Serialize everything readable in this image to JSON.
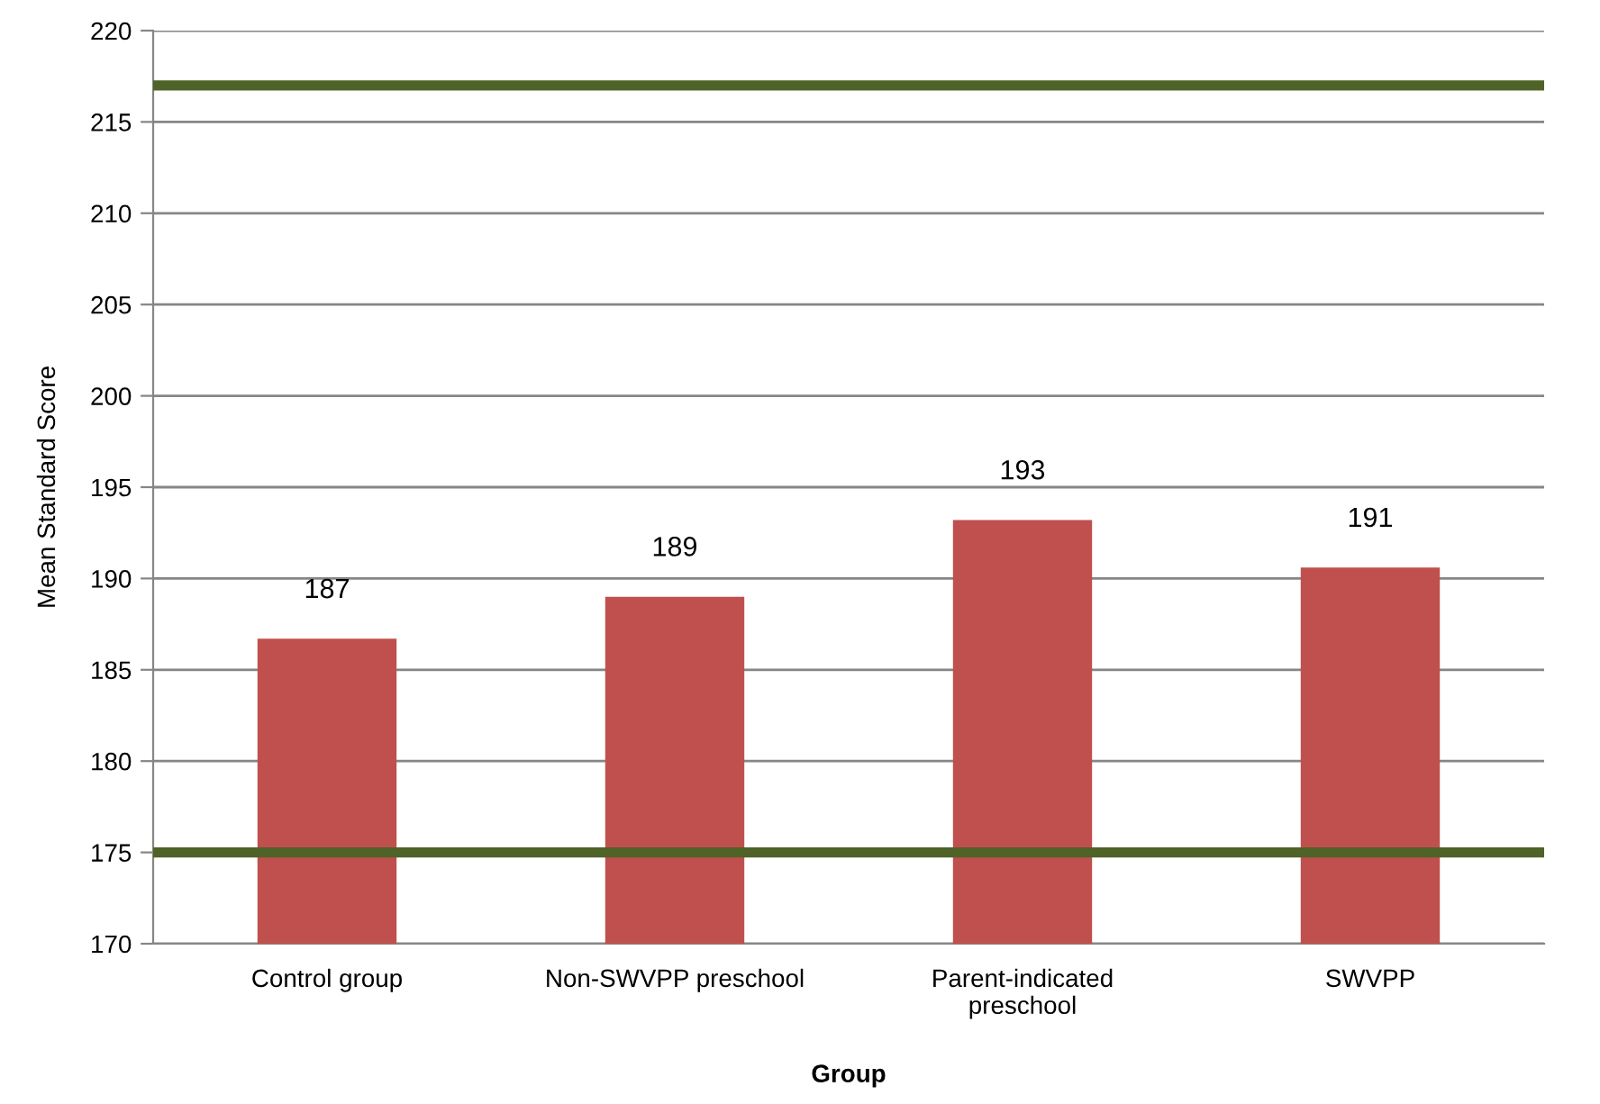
{
  "chart_data": {
    "type": "bar",
    "xlabel": "Group",
    "ylabel": "Mean Standard Score",
    "categories": [
      "Control group",
      "Non-SWVPP preschool",
      "Parent-indicated\npreschool",
      "SWVPP"
    ],
    "values": [
      186.7,
      189.0,
      193.2,
      190.6
    ],
    "color": "#c0504d",
    "value_labels": [
      "187",
      "189",
      "193",
      "191"
    ],
    "ylim": [
      170,
      220
    ],
    "yticks": [
      170,
      175,
      180,
      185,
      190,
      195,
      200,
      205,
      210,
      215,
      220
    ],
    "grid": "y",
    "ref_lines": [
      {
        "axis": "y",
        "value": 217,
        "color": "#4f6228"
      },
      {
        "axis": "y",
        "value": 175,
        "color": "#4f6228"
      }
    ]
  }
}
